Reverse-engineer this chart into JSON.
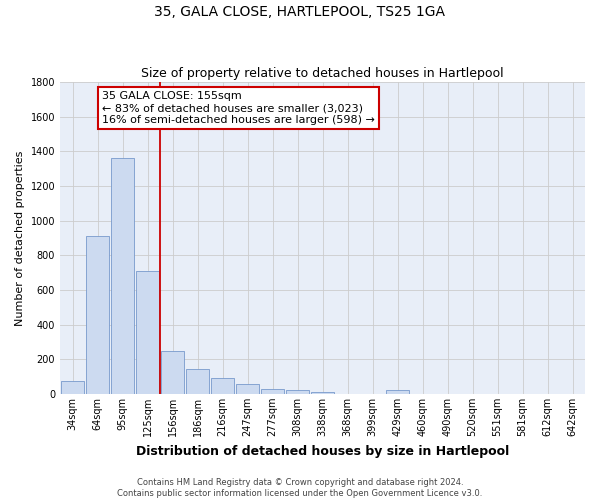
{
  "title1": "35, GALA CLOSE, HARTLEPOOL, TS25 1GA",
  "title2": "Size of property relative to detached houses in Hartlepool",
  "xlabel": "Distribution of detached houses by size in Hartlepool",
  "ylabel": "Number of detached properties",
  "categories": [
    "34sqm",
    "64sqm",
    "95sqm",
    "125sqm",
    "156sqm",
    "186sqm",
    "216sqm",
    "247sqm",
    "277sqm",
    "308sqm",
    "338sqm",
    "368sqm",
    "399sqm",
    "429sqm",
    "460sqm",
    "490sqm",
    "520sqm",
    "551sqm",
    "581sqm",
    "612sqm",
    "642sqm"
  ],
  "values": [
    75,
    910,
    1360,
    710,
    250,
    145,
    90,
    55,
    30,
    20,
    10,
    0,
    0,
    25,
    0,
    0,
    0,
    0,
    0,
    0,
    0
  ],
  "bar_color": "#ccdaf0",
  "bar_edge_color": "#7799cc",
  "vline_color": "#cc0000",
  "annotation_text": "35 GALA CLOSE: 155sqm\n← 83% of detached houses are smaller (3,023)\n16% of semi-detached houses are larger (598) →",
  "annotation_box_color": "#ffffff",
  "annotation_box_edge": "#cc0000",
  "ylim": [
    0,
    1800
  ],
  "yticks": [
    0,
    200,
    400,
    600,
    800,
    1000,
    1200,
    1400,
    1600,
    1800
  ],
  "grid_color": "#cccccc",
  "bg_color": "#e8eef8",
  "footer": "Contains HM Land Registry data © Crown copyright and database right 2024.\nContains public sector information licensed under the Open Government Licence v3.0.",
  "title1_fontsize": 10,
  "title2_fontsize": 9,
  "ylabel_fontsize": 8,
  "xlabel_fontsize": 9,
  "tick_fontsize": 7,
  "annot_fontsize": 8,
  "footer_fontsize": 6
}
